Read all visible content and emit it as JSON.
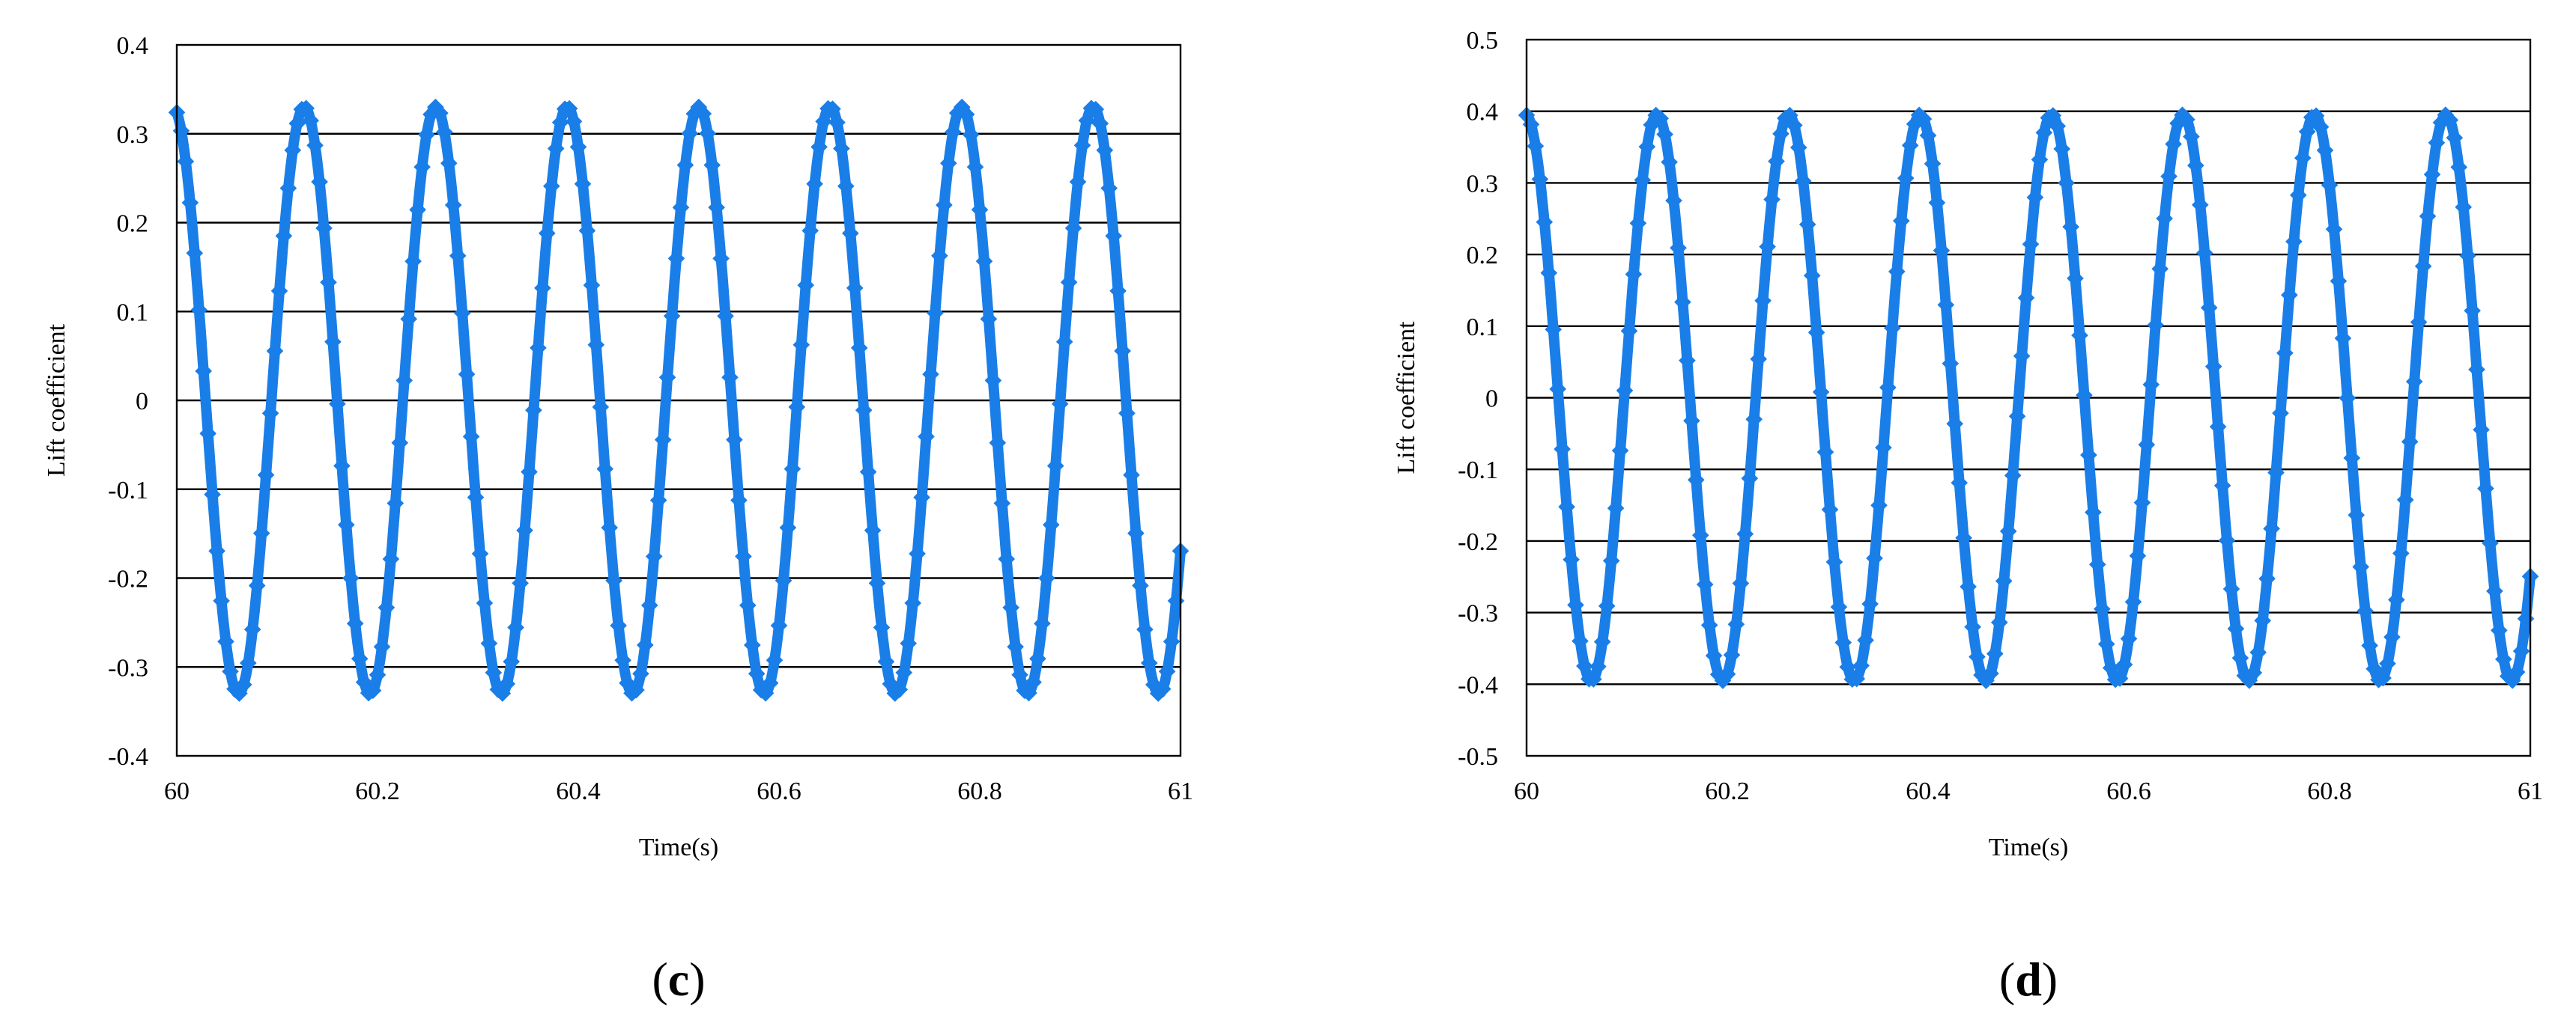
{
  "chart_data": [
    {
      "type": "scatter",
      "panel_label": "c",
      "title": "",
      "xlabel": "Time(s)",
      "ylabel": "Lift  coefficient",
      "xlim": [
        60,
        61
      ],
      "ylim": [
        -0.4,
        0.4
      ],
      "x_ticks": [
        "60",
        "60.2",
        "60.4",
        "60.6",
        "60.8",
        "61"
      ],
      "y_ticks": [
        "0.4",
        "0.3",
        "0.2",
        "0.1",
        "0",
        "-0.1",
        "-0.2",
        "-0.3",
        "-0.4"
      ],
      "y_tick_values": [
        0.4,
        0.3,
        0.2,
        0.1,
        0,
        -0.1,
        -0.2,
        -0.3,
        -0.4
      ],
      "grid": "horizontal",
      "legend": "none",
      "series": [
        {
          "color": "#1a7ee8",
          "signal": {
            "amplitude": 0.33,
            "period": 0.131,
            "peak_time": 60.127,
            "x_start": 60.0,
            "x_end": 61.0
          }
        }
      ]
    },
    {
      "type": "scatter",
      "panel_label": "d",
      "title": "",
      "xlabel": "Time(s)",
      "ylabel": "Lift  coefficient",
      "xlim": [
        60,
        61
      ],
      "ylim": [
        -0.5,
        0.5
      ],
      "x_ticks": [
        "60",
        "60.2",
        "60.4",
        "60.6",
        "60.8",
        "61"
      ],
      "y_ticks": [
        "0.5",
        "0.4",
        "0.3",
        "0.2",
        "0.1",
        "0",
        "-0.1",
        "-0.2",
        "-0.3",
        "-0.4",
        "-0.5"
      ],
      "y_tick_values": [
        0.5,
        0.4,
        0.3,
        0.2,
        0.1,
        0,
        -0.1,
        -0.2,
        -0.3,
        -0.4,
        -0.5
      ],
      "grid": "horizontal",
      "legend": "none",
      "series": [
        {
          "color": "#1a7ee8",
          "signal": {
            "amplitude": 0.395,
            "period": 0.131,
            "peak_time": 60.13,
            "x_start": 60.0,
            "x_end": 61.0
          }
        }
      ]
    }
  ]
}
